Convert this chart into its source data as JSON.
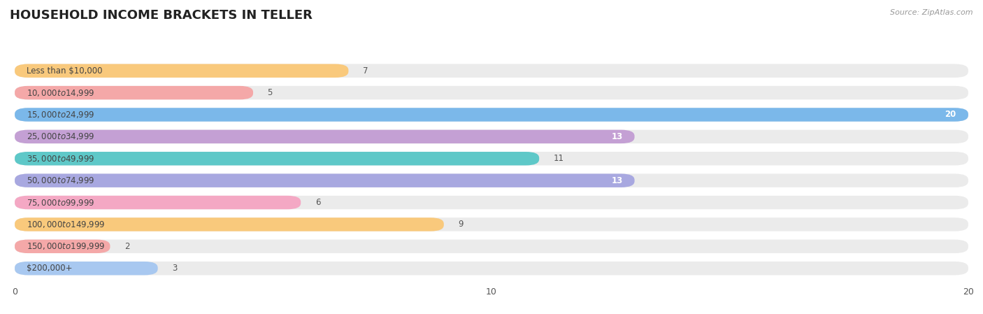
{
  "title": "HOUSEHOLD INCOME BRACKETS IN TELLER",
  "source": "Source: ZipAtlas.com",
  "categories": [
    "Less than $10,000",
    "$10,000 to $14,999",
    "$15,000 to $24,999",
    "$25,000 to $34,999",
    "$35,000 to $49,999",
    "$50,000 to $74,999",
    "$75,000 to $99,999",
    "$100,000 to $149,999",
    "$150,000 to $199,999",
    "$200,000+"
  ],
  "values": [
    7,
    5,
    20,
    13,
    11,
    13,
    6,
    9,
    2,
    3
  ],
  "bar_colors": [
    "#F9C97C",
    "#F4A8A8",
    "#7BB8EA",
    "#C4A0D4",
    "#5EC8C8",
    "#A8A8E0",
    "#F4A8C4",
    "#F9C97C",
    "#F4A8A8",
    "#A8C8F0"
  ],
  "xlim_min": 0,
  "xlim_max": 20,
  "xticks": [
    0,
    10,
    20
  ],
  "bg_color": "#ffffff",
  "row_bg_color": "#ebebeb",
  "title_fontsize": 13,
  "label_fontsize": 8.5,
  "value_fontsize": 8.5,
  "bar_height": 0.62,
  "value_inside_threshold": 13
}
